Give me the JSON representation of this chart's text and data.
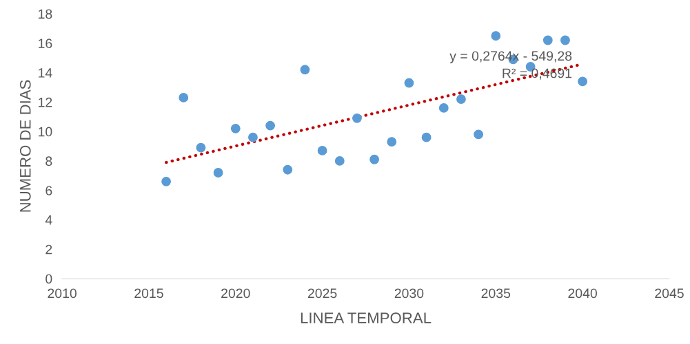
{
  "chart_data": {
    "type": "scatter",
    "xlabel": "LINEA TEMPORAL",
    "ylabel": "NUMERO DE DIAS",
    "x": [
      2016,
      2017,
      2018,
      2019,
      2020,
      2021,
      2022,
      2023,
      2024,
      2025,
      2026,
      2027,
      2028,
      2029,
      2030,
      2031,
      2032,
      2033,
      2034,
      2035,
      2036,
      2037,
      2038,
      2039,
      2040
    ],
    "series": [
      {
        "color": "#5b9bd5",
        "marker": "circle",
        "values": [
          6.6,
          12.3,
          8.9,
          7.2,
          10.2,
          9.6,
          10.4,
          7.4,
          14.2,
          8.7,
          8.0,
          10.9,
          8.1,
          9.3,
          13.3,
          9.6,
          11.6,
          12.2,
          9.8,
          16.5,
          14.9,
          14.4,
          16.2,
          16.2,
          13.4
        ]
      },
      {
        "type": "line",
        "color": "#c00000",
        "line_style": "dotted",
        "x": [
          2016,
          2039.7
        ],
        "values": [
          7.9,
          14.5
        ]
      }
    ],
    "annotations": [
      "y = 0,2764x - 549,28\nR² = 0,4691"
    ],
    "xlim": [
      2010,
      2045
    ],
    "xticks": [
      2010,
      2015,
      2020,
      2025,
      2030,
      2035,
      2040,
      2045
    ],
    "ylim": [
      0,
      18
    ],
    "yticks": [
      0,
      2,
      4,
      6,
      8,
      10,
      12,
      14,
      16,
      18
    ],
    "legend": false
  }
}
